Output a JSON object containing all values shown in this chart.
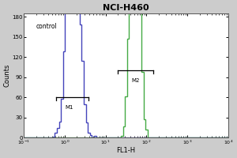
{
  "title": "NCI-H460",
  "xlabel": "FL1-H",
  "ylabel": "Counts",
  "y_ticks": [
    0,
    30,
    60,
    90,
    120,
    150,
    180
  ],
  "ylim": [
    0,
    185
  ],
  "control_color": "#4444bb",
  "sample_color": "#44aa44",
  "control_label": "control",
  "m1_label": "M1",
  "m2_label": "M2",
  "bg_color": "#cccccc",
  "plot_bg_color": "#ffffff",
  "control_mean_log": 0.2,
  "control_sigma": 0.32,
  "sample_mean_log": 1.72,
  "sample_sigma": 0.22,
  "n_cells": 3000,
  "seed": 42
}
